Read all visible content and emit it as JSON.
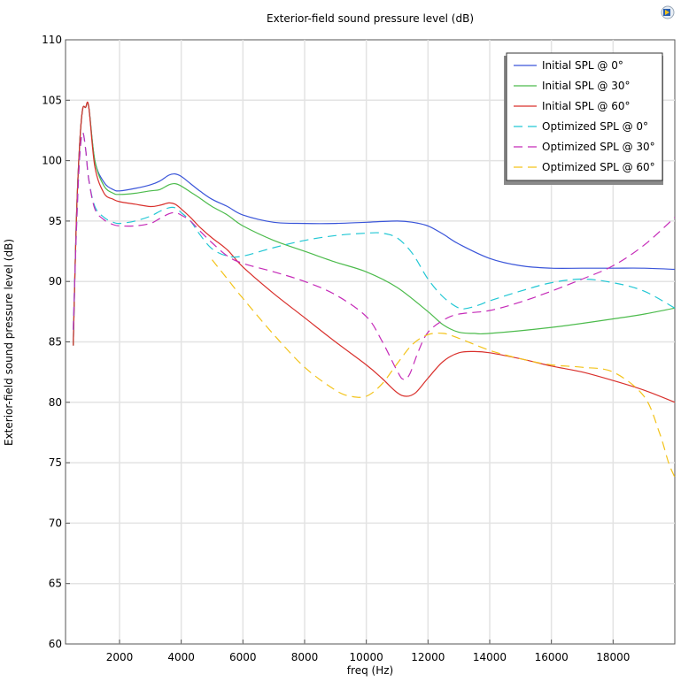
{
  "chart_data": {
    "type": "line",
    "title": "Exterior-field sound pressure level (dB)",
    "xlabel": "freq (Hz)",
    "ylabel": "Exterior-field sound pressure level (dB)",
    "xlim": [
      250,
      20000
    ],
    "ylim": [
      60,
      110
    ],
    "xticks": [
      2000,
      4000,
      6000,
      8000,
      10000,
      12000,
      14000,
      16000,
      18000
    ],
    "yticks": [
      60,
      65,
      70,
      75,
      80,
      85,
      90,
      95,
      100,
      105,
      110
    ],
    "grid": true,
    "legend_position": "top-right",
    "series": [
      {
        "name": "Initial SPL @ 0°",
        "color": "#3a55d9",
        "dash": "solid",
        "x": [
          500,
          600,
          700,
          800,
          900,
          1000,
          1200,
          1500,
          1800,
          2000,
          2500,
          3000,
          3300,
          3600,
          3800,
          4000,
          4300,
          4600,
          5000,
          5500,
          6000,
          7000,
          8000,
          9000,
          10000,
          11000,
          11500,
          12000,
          12500,
          13000,
          14000,
          15000,
          16000,
          17000,
          18000,
          19000,
          20000
        ],
        "y": [
          84.7,
          95,
          101,
          104.2,
          104.4,
          104.5,
          100,
          98.2,
          97.6,
          97.5,
          97.7,
          98,
          98.3,
          98.8,
          98.9,
          98.7,
          98.1,
          97.5,
          96.8,
          96.2,
          95.5,
          94.9,
          94.8,
          94.8,
          94.9,
          95,
          94.9,
          94.6,
          93.9,
          93.1,
          91.9,
          91.3,
          91.1,
          91.1,
          91.1,
          91.1,
          91
        ]
      },
      {
        "name": "Initial SPL @ 30°",
        "color": "#4cbb4c",
        "dash": "solid",
        "x": [
          500,
          600,
          700,
          800,
          900,
          1000,
          1200,
          1500,
          1800,
          2000,
          2500,
          3000,
          3300,
          3600,
          3800,
          4000,
          4300,
          4600,
          5000,
          5500,
          6000,
          7000,
          8000,
          9000,
          10000,
          11000,
          12000,
          12500,
          13000,
          13500,
          14000,
          16000,
          18000,
          19000,
          20000
        ],
        "y": [
          84.7,
          95,
          101,
          104.2,
          104.4,
          104.5,
          100,
          97.9,
          97.3,
          97.2,
          97.3,
          97.5,
          97.6,
          98,
          98.1,
          97.9,
          97.4,
          96.9,
          96.2,
          95.5,
          94.6,
          93.4,
          92.5,
          91.6,
          90.8,
          89.5,
          87.5,
          86.4,
          85.8,
          85.7,
          85.7,
          86.2,
          86.9,
          87.3,
          87.8
        ]
      },
      {
        "name": "Initial SPL @ 60°",
        "color": "#d9302c",
        "dash": "solid",
        "x": [
          500,
          600,
          700,
          800,
          900,
          1000,
          1200,
          1500,
          1800,
          2000,
          2500,
          3000,
          3300,
          3600,
          3800,
          4000,
          4300,
          4600,
          5000,
          5500,
          6000,
          7000,
          8000,
          9000,
          10000,
          10500,
          11000,
          11300,
          11600,
          12000,
          12500,
          13000,
          13500,
          14000,
          15000,
          16000,
          17000,
          18000,
          19000,
          20000
        ],
        "y": [
          84.7,
          95,
          101,
          104.2,
          104.4,
          104.5,
          99.5,
          97.3,
          96.8,
          96.6,
          96.4,
          96.2,
          96.3,
          96.5,
          96.4,
          96,
          95.3,
          94.5,
          93.6,
          92.6,
          91.2,
          89,
          87,
          85,
          83.1,
          82,
          80.8,
          80.5,
          80.8,
          82,
          83.4,
          84.1,
          84.2,
          84.1,
          83.6,
          83,
          82.5,
          81.8,
          81,
          80
        ]
      },
      {
        "name": "Optimized SPL @ 0°",
        "color": "#22c7d4",
        "dash": "dashed",
        "x": [
          500,
          600,
          700,
          800,
          900,
          1000,
          1200,
          1500,
          1800,
          2000,
          2500,
          3000,
          3300,
          3600,
          3800,
          4000,
          4300,
          4600,
          5000,
          5500,
          6000,
          7000,
          8000,
          9000,
          10000,
          10500,
          11000,
          11500,
          12000,
          12500,
          13000,
          13300,
          13700,
          14000,
          15000,
          16000,
          17000,
          18000,
          19000,
          20000
        ],
        "y": [
          86,
          94,
          100,
          102.3,
          101,
          98.5,
          96.2,
          95.3,
          94.9,
          94.8,
          95,
          95.4,
          95.8,
          96.1,
          96.1,
          95.7,
          95,
          93.9,
          92.7,
          92.1,
          92.1,
          92.8,
          93.4,
          93.8,
          94,
          94,
          93.6,
          92.3,
          90.2,
          88.7,
          87.8,
          87.8,
          88.1,
          88.4,
          89.2,
          89.9,
          90.2,
          89.9,
          89.2,
          87.8
        ]
      },
      {
        "name": "Optimized SPL @ 30°",
        "color": "#c52ab8",
        "dash": "dashed",
        "x": [
          500,
          600,
          700,
          800,
          900,
          1000,
          1200,
          1500,
          1800,
          2000,
          2500,
          3000,
          3300,
          3600,
          3800,
          4000,
          4300,
          4600,
          5000,
          5500,
          6000,
          7000,
          8000,
          9000,
          10000,
          10500,
          11000,
          11200,
          11400,
          11700,
          12000,
          12500,
          13000,
          14000,
          15000,
          16000,
          17000,
          18000,
          19000,
          20000
        ],
        "y": [
          86,
          94,
          100,
          102.3,
          101,
          98.5,
          96,
          95.1,
          94.7,
          94.6,
          94.6,
          94.8,
          95.2,
          95.6,
          95.7,
          95.5,
          95,
          94.2,
          93.2,
          92.1,
          91.5,
          90.8,
          90,
          88.9,
          87.1,
          85.1,
          82.6,
          81.9,
          82.3,
          84.3,
          85.8,
          86.8,
          87.3,
          87.6,
          88.3,
          89.2,
          90.2,
          91.3,
          93,
          95.3
        ]
      },
      {
        "name": "Optimized SPL @ 60°",
        "color": "#f3c31a",
        "dash": "dashed",
        "x": [
          5000,
          5500,
          6000,
          7000,
          8000,
          9000,
          9500,
          10000,
          10500,
          11000,
          11500,
          12000,
          12500,
          13000,
          14000,
          15000,
          16000,
          17000,
          18000,
          19000,
          19500,
          19800,
          20000
        ],
        "y": [
          91.8,
          90.2,
          88.6,
          85.6,
          82.9,
          81,
          80.5,
          80.5,
          81.5,
          83.2,
          84.8,
          85.6,
          85.7,
          85.3,
          84.3,
          83.6,
          83.1,
          82.9,
          82.5,
          80.5,
          77.5,
          75,
          73.8
        ]
      }
    ]
  }
}
